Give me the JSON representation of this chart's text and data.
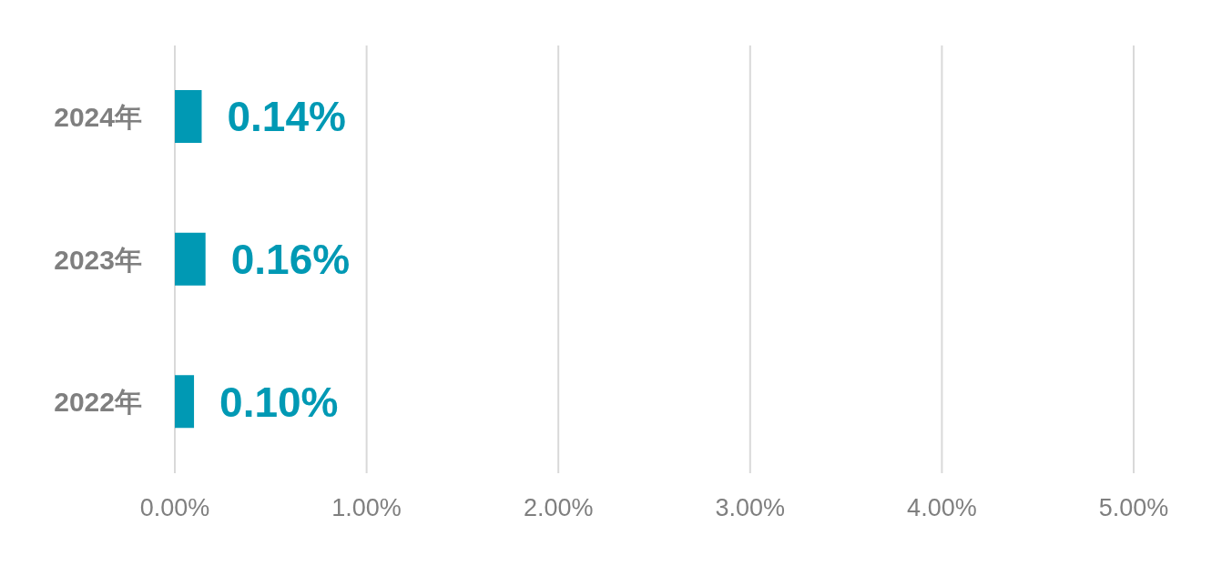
{
  "chart_data": {
    "type": "bar",
    "orientation": "horizontal",
    "categories": [
      "2024年",
      "2023年",
      "2022年"
    ],
    "values": [
      0.14,
      0.16,
      0.1
    ],
    "value_labels": [
      "0.14%",
      "0.16%",
      "0.10%"
    ],
    "color": "#0099b4",
    "xlim": [
      0,
      5
    ],
    "xticks": [
      {
        "value": 0,
        "label": "0.00%"
      },
      {
        "value": 1,
        "label": "1.00%"
      },
      {
        "value": 2,
        "label": "2.00%"
      },
      {
        "value": 3,
        "label": "3.00%"
      },
      {
        "value": 4,
        "label": "4.00%"
      },
      {
        "value": 5,
        "label": "5.00%"
      }
    ],
    "grid": "x",
    "legend": false
  }
}
